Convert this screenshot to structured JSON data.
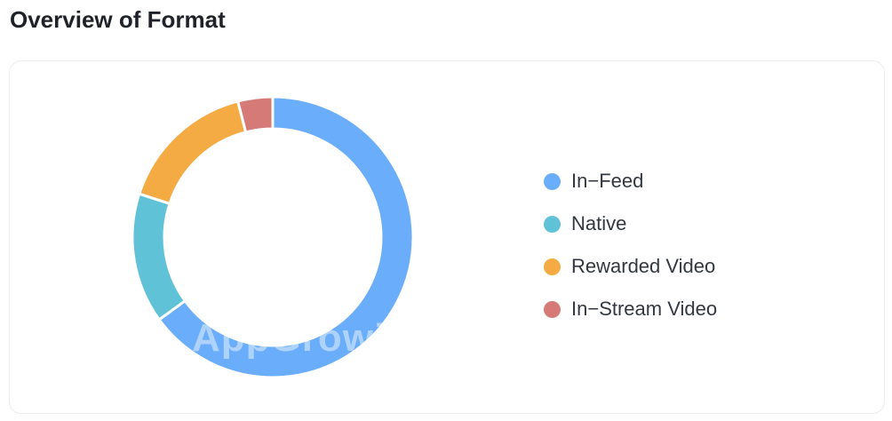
{
  "page": {
    "title": "Overview of Format"
  },
  "watermark": "AppGrowing",
  "chart_data": {
    "type": "pie",
    "style": "donut",
    "categories": [
      "In-Feed",
      "Native",
      "Rewarded Video",
      "In-Stream Video"
    ],
    "values": [
      65,
      15,
      16,
      4
    ],
    "colors": [
      "#6aadfa",
      "#5fc2d6",
      "#f4ab44",
      "#d67a78"
    ],
    "legend_placement": "right"
  }
}
